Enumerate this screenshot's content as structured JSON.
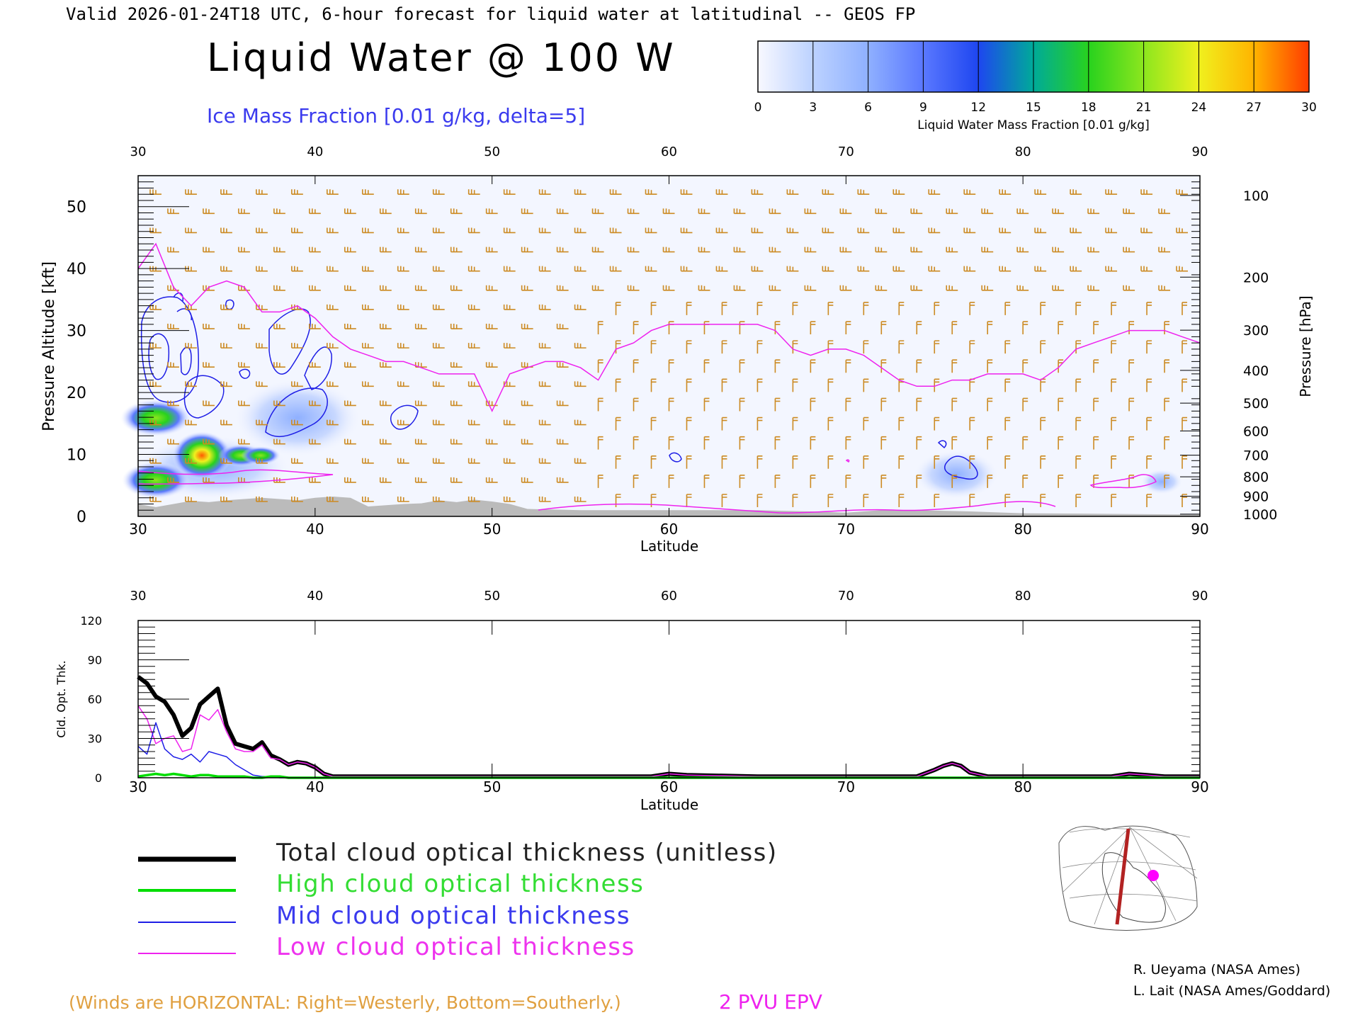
{
  "header": {
    "valid_line": "Valid 2026-01-24T18 UTC, 6-hour forecast for liquid water at latitudinal -- GEOS FP",
    "title": "Liquid Water @ 100 W",
    "subtitle": "Ice Mass Fraction [0.01 g/kg, delta=5]"
  },
  "colorbar": {
    "ticks": [
      "0",
      "3",
      "6",
      "9",
      "12",
      "15",
      "18",
      "21",
      "24",
      "27",
      "30"
    ],
    "label": "Liquid Water Mass Fraction [0.01 g/kg]",
    "colors": [
      "#f8f8ff",
      "#bcd2ff",
      "#8fb0ff",
      "#5a78ff",
      "#1e46f0",
      "#00aa99",
      "#28d21e",
      "#8ce61e",
      "#f0f01e",
      "#ffb400",
      "#ff5a00"
    ]
  },
  "upper_panel": {
    "top_ticks": [
      "30",
      "40",
      "50",
      "60",
      "70",
      "80",
      "90"
    ],
    "bottom_ticks": [
      "30",
      "40",
      "50",
      "60",
      "70",
      "80",
      "90"
    ],
    "left_ticks": [
      "0",
      "10",
      "20",
      "30",
      "40",
      "50"
    ],
    "right_ticks": [
      "100",
      "200",
      "300",
      "400",
      "500",
      "600",
      "700",
      "800",
      "900",
      "1000"
    ],
    "xlabel": "Latitude",
    "ylabel": "Pressure Altitude [kft]",
    "ylabel_right": "Pressure [hPa]"
  },
  "lower_panel": {
    "top_ticks": [
      "30",
      "40",
      "50",
      "60",
      "70",
      "80",
      "90"
    ],
    "bottom_ticks": [
      "30",
      "40",
      "50",
      "60",
      "70",
      "80",
      "90"
    ],
    "left_ticks": [
      "0",
      "30",
      "60",
      "90",
      "120"
    ],
    "xlabel": "Latitude",
    "ylabel": "Cld. Opt. Thk."
  },
  "legend": {
    "total": "Total cloud optical thickness (unitless)",
    "high": "High cloud optical thickness",
    "mid": "Mid cloud optical thickness",
    "low": "Low cloud optical thickness"
  },
  "footer": {
    "winds_note": "(Winds are HORIZONTAL: Right=Westerly, Bottom=Southerly.)",
    "pv_label": "2 PVU EPV",
    "credit1": "R. Ueyama (NASA Ames)",
    "credit2": "L. Lait (NASA Ames/Goddard)"
  },
  "colors": {
    "total": "#000000",
    "high": "#00dd00",
    "mid": "#1e1ee6",
    "low": "#ee22ee",
    "winds": "#cc8a22",
    "pv": "#ee22ee",
    "ice_contour": "#1e1ee6",
    "terrain": "#bbbbbb"
  },
  "chart_data": [
    {
      "type": "heatmap",
      "title": "Liquid Water @ 100 W",
      "xlabel": "Latitude",
      "ylabel": "Pressure Altitude [kft]",
      "xlim": [
        30,
        90
      ],
      "ylim": [
        0,
        55
      ],
      "pv_2pvu_kft": {
        "x": [
          30,
          31,
          32,
          33,
          34,
          35,
          36,
          37,
          38,
          39,
          40,
          41,
          42,
          43,
          44,
          45,
          46,
          47,
          48,
          49,
          50,
          51,
          52,
          53,
          54,
          55,
          56,
          57,
          58,
          59,
          60,
          61,
          62,
          63,
          64,
          65,
          66,
          67,
          68,
          69,
          70,
          71,
          72,
          73,
          74,
          75,
          76,
          77,
          78,
          79,
          80,
          81,
          82,
          83,
          84,
          85,
          86,
          87,
          88,
          89,
          90
        ],
        "y": [
          40,
          44,
          37,
          34,
          37,
          38,
          37,
          33,
          33,
          34,
          32,
          29,
          27,
          26,
          25,
          25,
          24,
          23,
          23,
          23,
          17,
          23,
          24,
          25,
          25,
          24,
          22,
          27,
          28,
          30,
          31,
          31,
          31,
          31,
          31,
          31,
          30,
          27,
          26,
          27,
          27,
          26,
          24,
          22,
          21,
          21,
          22,
          22,
          23,
          23,
          23,
          22,
          24,
          27,
          28,
          29,
          30,
          30,
          30,
          29,
          28
        ]
      },
      "liquid_water_maxima": [
        {
          "lat": 31.0,
          "alt_kft": 16,
          "value": 18
        },
        {
          "lat": 31.2,
          "alt_kft": 6,
          "value": 18
        },
        {
          "lat": 33.6,
          "alt_kft": 10,
          "value": 27
        },
        {
          "lat": 35.5,
          "alt_kft": 10,
          "value": 21
        },
        {
          "lat": 36.2,
          "alt_kft": 10,
          "value": 18
        }
      ]
    },
    {
      "type": "line",
      "xlabel": "Latitude",
      "ylabel": "Cld. Opt. Thk.",
      "xlim": [
        30,
        90
      ],
      "ylim": [
        0,
        120
      ],
      "x": [
        30,
        30.5,
        31,
        31.5,
        32,
        32.5,
        33,
        33.5,
        34,
        34.5,
        35,
        35.5,
        36,
        36.5,
        37,
        37.5,
        38,
        38.5,
        39,
        39.5,
        40,
        40.5,
        41,
        45,
        50,
        55,
        59,
        60,
        61,
        65,
        70,
        74,
        75,
        75.5,
        76,
        76.5,
        77,
        78,
        80,
        85,
        86,
        87,
        88,
        89,
        90
      ],
      "series": [
        {
          "name": "Total cloud optical thickness (unitless)",
          "values": [
            77,
            72,
            62,
            58,
            48,
            32,
            38,
            56,
            62,
            68,
            40,
            26,
            24,
            22,
            27,
            17,
            14,
            10,
            12,
            11,
            8,
            3,
            1,
            1,
            1,
            1,
            1,
            3,
            2,
            1,
            1,
            1,
            6,
            9,
            11,
            9,
            4,
            1,
            1,
            1,
            3,
            2,
            1,
            1,
            1
          ]
        },
        {
          "name": "High cloud optical thickness",
          "values": [
            1,
            2,
            3,
            2,
            3,
            2,
            1,
            2,
            2,
            1,
            1,
            1,
            1,
            0,
            0,
            1,
            1,
            0,
            0,
            0,
            0,
            0,
            0,
            0,
            0,
            0,
            0,
            0,
            0,
            0,
            0,
            0,
            0,
            0,
            0,
            0,
            0,
            0,
            0,
            0,
            0,
            0,
            0,
            0,
            0
          ]
        },
        {
          "name": "Mid cloud optical thickness",
          "values": [
            24,
            18,
            42,
            22,
            16,
            14,
            18,
            12,
            20,
            18,
            16,
            10,
            6,
            2,
            1,
            1,
            0,
            0,
            0,
            0,
            0,
            0,
            0,
            0,
            0,
            0,
            0,
            0,
            0,
            0,
            0,
            0,
            0,
            0,
            0,
            0,
            0,
            0,
            0,
            0,
            0,
            0,
            0,
            0,
            0
          ]
        },
        {
          "name": "Low cloud optical thickness",
          "values": [
            55,
            45,
            26,
            30,
            32,
            20,
            22,
            48,
            44,
            52,
            35,
            22,
            20,
            20,
            25,
            15,
            14,
            10,
            12,
            11,
            8,
            3,
            1,
            1,
            1,
            1,
            1,
            3,
            2,
            1,
            1,
            1,
            6,
            9,
            11,
            9,
            4,
            1,
            1,
            1,
            3,
            2,
            1,
            1,
            1
          ]
        }
      ]
    }
  ]
}
